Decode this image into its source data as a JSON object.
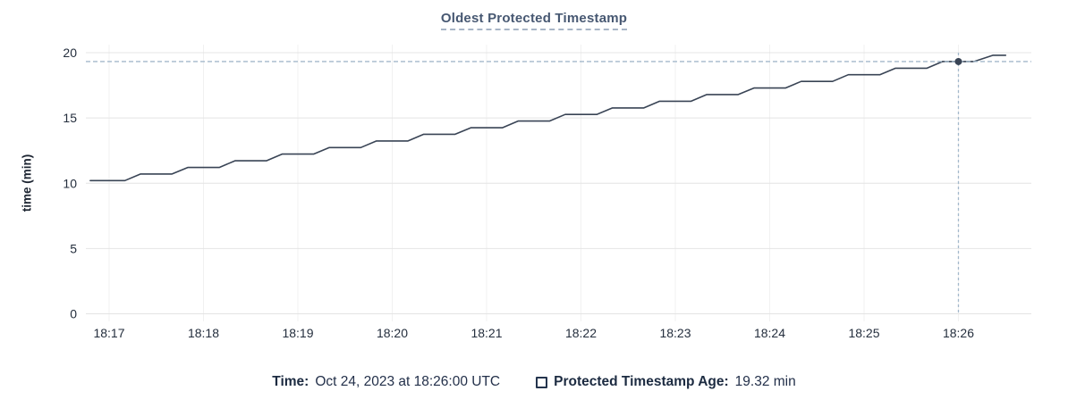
{
  "title": {
    "text": "Oldest Protected Timestamp"
  },
  "colors": {
    "title": "#475872",
    "line": "#394455",
    "dot": "#394455",
    "crosshair": "#a3b9cb",
    "grid_horizontal": "#e4e4e4",
    "grid_vertical": "#f1f1f1",
    "tick_text": "#242e3d",
    "footer_text": "#1c2b41"
  },
  "footer": {
    "time_label": "Time:",
    "time_value": "Oct 24, 2023 at 18:26:00 UTC",
    "series_label": "Protected Timestamp Age:",
    "series_value": "19.32 min"
  },
  "chart_data": {
    "type": "line",
    "title": "Oldest Protected Timestamp",
    "xlabel": "",
    "ylabel": "time (min)",
    "ylim": [
      0,
      20
    ],
    "yticks": [
      0,
      5,
      10,
      15,
      20
    ],
    "xticks": [
      "18:17",
      "18:18",
      "18:19",
      "18:20",
      "18:21",
      "18:22",
      "18:23",
      "18:24",
      "18:25",
      "18:26"
    ],
    "x_range": [
      "18:16:45",
      "18:26:47"
    ],
    "grid": true,
    "legend_position": "bottom",
    "series": [
      {
        "name": "Protected Timestamp Age",
        "unit": "min",
        "points": [
          [
            "18:16:48",
            10.2
          ],
          [
            "18:17:10",
            10.2
          ],
          [
            "18:17:20",
            10.71
          ],
          [
            "18:17:40",
            10.71
          ],
          [
            "18:17:50",
            11.21
          ],
          [
            "18:18:10",
            11.21
          ],
          [
            "18:18:20",
            11.72
          ],
          [
            "18:18:40",
            11.72
          ],
          [
            "18:18:50",
            12.23
          ],
          [
            "18:19:10",
            12.23
          ],
          [
            "18:19:20",
            12.73
          ],
          [
            "18:19:40",
            12.73
          ],
          [
            "18:19:50",
            13.24
          ],
          [
            "18:20:10",
            13.24
          ],
          [
            "18:20:20",
            13.75
          ],
          [
            "18:20:40",
            13.75
          ],
          [
            "18:20:50",
            14.25
          ],
          [
            "18:21:10",
            14.25
          ],
          [
            "18:21:20",
            14.76
          ],
          [
            "18:21:40",
            14.76
          ],
          [
            "18:21:50",
            15.27
          ],
          [
            "18:22:10",
            15.27
          ],
          [
            "18:22:20",
            15.77
          ],
          [
            "18:22:40",
            15.77
          ],
          [
            "18:22:50",
            16.28
          ],
          [
            "18:23:10",
            16.28
          ],
          [
            "18:23:20",
            16.79
          ],
          [
            "18:23:40",
            16.79
          ],
          [
            "18:23:50",
            17.29
          ],
          [
            "18:24:10",
            17.29
          ],
          [
            "18:24:20",
            17.8
          ],
          [
            "18:24:40",
            17.8
          ],
          [
            "18:24:50",
            18.31
          ],
          [
            "18:25:10",
            18.31
          ],
          [
            "18:25:20",
            18.81
          ],
          [
            "18:25:40",
            18.81
          ],
          [
            "18:25:50",
            19.32
          ],
          [
            "18:26:10",
            19.32
          ],
          [
            "18:26:22",
            19.8
          ],
          [
            "18:26:30",
            19.8
          ]
        ]
      }
    ],
    "hover": {
      "time": "18:26:00",
      "time_display": "Oct 24, 2023 at 18:26:00 UTC",
      "value": 19.32,
      "value_display": "19.32 min"
    }
  }
}
